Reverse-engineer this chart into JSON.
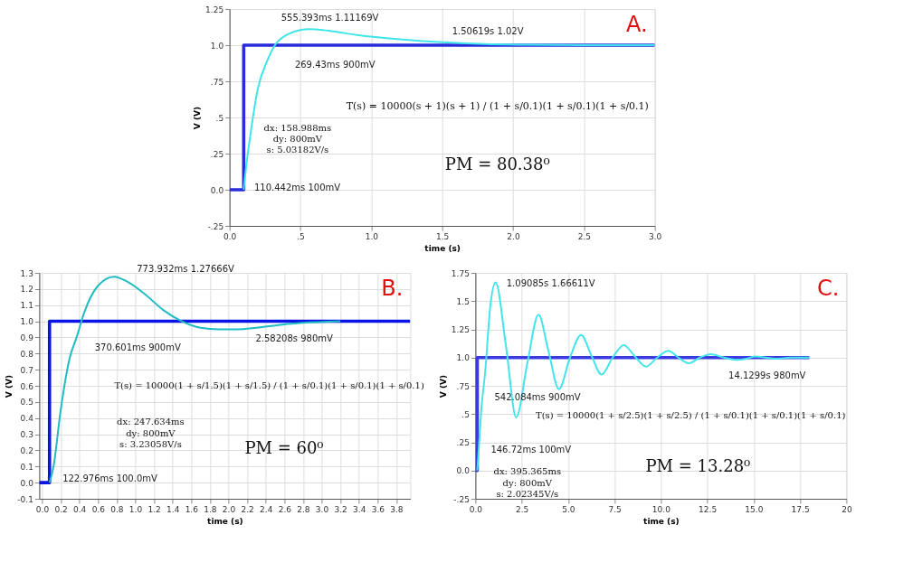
{
  "chart_data": [
    {
      "type": "line",
      "title": "A.",
      "xlabel": "time (s)",
      "ylabel": "V (V)",
      "xlim": [
        0,
        3.0
      ],
      "ylim": [
        -0.25,
        1.25
      ],
      "xticks": [
        {
          "value": 0,
          "label": "0.0"
        },
        {
          "value": 0.5,
          "label": ".5"
        },
        {
          "value": 1.0,
          "label": "1.0"
        },
        {
          "value": 1.5,
          "label": "1.5"
        },
        {
          "value": 2.0,
          "label": "2.0"
        },
        {
          "value": 2.5,
          "label": "2.5"
        },
        {
          "value": 3.0,
          "label": "3.0"
        }
      ],
      "yticks": [
        {
          "value": -0.25,
          "label": "-.25"
        },
        {
          "value": 0,
          "label": "0.0"
        },
        {
          "value": 0.25,
          "label": ".25"
        },
        {
          "value": 0.5,
          "label": ".5"
        },
        {
          "value": 0.75,
          "label": ".75"
        },
        {
          "value": 1.0,
          "label": "1.0"
        },
        {
          "value": 1.25,
          "label": "1.25"
        }
      ],
      "grid": true,
      "legend": false,
      "marker": "none",
      "line_style": "solid",
      "series": [
        {
          "color": "#2b2bdc",
          "x": [
            0,
            0.1,
            0.1,
            3.0
          ],
          "values": [
            0,
            0,
            1,
            1
          ]
        },
        {
          "color": "#3ee6ea",
          "x": [
            0.1,
            0.110442,
            0.15,
            0.2,
            0.26943,
            0.32,
            0.4,
            0.555393,
            0.7,
            0.9,
            1.2,
            1.50619,
            1.8,
            2.1,
            2.5,
            3.0
          ],
          "values": [
            0,
            0.1,
            0.4,
            0.7,
            0.9,
            1.0,
            1.07,
            1.11169,
            1.1,
            1.07,
            1.04,
            1.02,
            1.008,
            1.003,
            1.0,
            1.0
          ]
        }
      ],
      "annotations": [
        {
          "text": "555.393ms 1.11169V",
          "x": 0.555393,
          "y": 1.11169
        },
        {
          "text": "1.50619s 1.02V",
          "x": 1.50619,
          "y": 1.02
        },
        {
          "text": "269.43ms 900mV",
          "x": 0.26943,
          "y": 0.9
        },
        {
          "text": "110.442ms 100mV",
          "x": 0.110442,
          "y": 0.1
        },
        "dx: 158.988ms",
        "dy: 800mV",
        "s: 5.03182V/s",
        "T(s) = 10000(s + 1)(s + 1) / (1 + s/0.1)(1 + s/0.1)(1 + s/0.1)",
        "PM = 80.38⁰"
      ]
    },
    {
      "type": "line",
      "title": "B.",
      "xlabel": "time (s)",
      "ylabel": "V (V)",
      "xlim": [
        -0.03,
        3.95
      ],
      "ylim": [
        -0.1,
        1.3
      ],
      "xticks": [
        {
          "value": 0,
          "label": "0.0"
        },
        0.2,
        0.4,
        0.6,
        0.8,
        {
          "value": 1.0,
          "label": "1.0"
        },
        1.2,
        1.4,
        1.6,
        1.8,
        {
          "value": 2.0,
          "label": "2.0"
        },
        2.2,
        2.4,
        2.6,
        2.8,
        {
          "value": 3.0,
          "label": "3.0"
        },
        3.2,
        3.4,
        3.6,
        3.8
      ],
      "yticks": [
        -0.1,
        {
          "value": 0,
          "label": "0.0"
        },
        0.1,
        0.2,
        0.3,
        0.4,
        0.5,
        0.6,
        0.7,
        0.8,
        0.9,
        {
          "value": 1.0,
          "label": "1.0"
        },
        1.1,
        1.2,
        1.3
      ],
      "grid": true,
      "legend": false,
      "marker": "none",
      "line_style": "solid",
      "series": [
        {
          "color": "#0a14e6",
          "x": [
            -0.03,
            0.08,
            0.08,
            3.95
          ],
          "values": [
            0,
            0,
            1,
            1
          ]
        },
        {
          "color": "#1fbcc4",
          "x": [
            0.08,
            0.122976,
            0.2,
            0.3,
            0.370601,
            0.45,
            0.6,
            0.773932,
            0.9,
            1.1,
            1.3,
            1.5,
            1.7,
            1.9,
            2.1,
            2.3,
            2.58208,
            2.8,
            3.2
          ],
          "values": [
            0,
            0.1,
            0.45,
            0.78,
            0.9,
            1.05,
            1.22,
            1.27666,
            1.25,
            1.17,
            1.07,
            1.0,
            0.96,
            0.95,
            0.95,
            0.96,
            0.98,
            0.99,
            1.0
          ]
        }
      ],
      "annotations": [
        {
          "text": "773.932ms 1.27666V",
          "x": 0.773932,
          "y": 1.27666
        },
        {
          "text": "370.601ms 900mV",
          "x": 0.370601,
          "y": 0.9
        },
        {
          "text": "2.58208s 980mV",
          "x": 2.58208,
          "y": 0.98
        },
        {
          "text": "122.976ms 100.0mV",
          "x": 0.122976,
          "y": 0.1
        },
        "dx: 247.634ms",
        "dy: 800mV",
        "s: 3.23058V/s",
        "T(s) = 10000(1 + s/1.5)(1 + s/1.5) / (1 + s/0.1)(1 + s/0.1)(1 + s/0.1)",
        "PM = 60⁰"
      ]
    },
    {
      "type": "line",
      "title": "C.",
      "xlabel": "time (s)",
      "ylabel": "V (V)",
      "xlim": [
        0,
        20
      ],
      "ylim": [
        -0.25,
        1.75
      ],
      "xticks": [
        {
          "value": 0,
          "label": "0.0"
        },
        2.5,
        {
          "value": 5,
          "label": "5.0"
        },
        7.5,
        {
          "value": 10,
          "label": "10.0"
        },
        12.5,
        {
          "value": 15,
          "label": "15.0"
        },
        17.5,
        20
      ],
      "yticks": [
        {
          "value": -0.25,
          "label": "-.25"
        },
        {
          "value": 0,
          "label": "0.0"
        },
        {
          "value": 0.25,
          "label": ".25"
        },
        {
          "value": 0.5,
          "label": ".5"
        },
        {
          "value": 0.75,
          "label": ".75"
        },
        {
          "value": 1.0,
          "label": "1.0"
        },
        1.25,
        1.5,
        1.75
      ],
      "grid": true,
      "legend": false,
      "marker": "none",
      "line_style": "solid",
      "series": [
        {
          "color": "#3a3ae0",
          "x": [
            0,
            0.1,
            0.1,
            18
          ],
          "values": [
            0,
            0,
            1,
            1
          ]
        },
        {
          "color": "#44e4ec",
          "x": [
            0.1,
            0.14672,
            0.3,
            0.542084,
            0.8,
            1.09085,
            1.65,
            2.2,
            2.8,
            3.4,
            3.95,
            4.5,
            5.1,
            5.7,
            6.25,
            6.8,
            7.4,
            8.0,
            8.6,
            9.2,
            9.8,
            10.4,
            10.95,
            11.5,
            12.1,
            12.7,
            13.4,
            14.1299,
            14.6,
            15.1,
            15.65,
            16.2,
            17.0,
            18.0
          ],
          "values": [
            0,
            0.1,
            0.5,
            0.9,
            1.45,
            1.66611,
            1.1,
            0.47,
            0.95,
            1.38,
            1.05,
            0.72,
            1.0,
            1.2,
            1.02,
            0.85,
            1.0,
            1.11,
            1.01,
            0.92,
            1.0,
            1.06,
            1.0,
            0.95,
            1.0,
            1.03,
            1.0,
            0.98,
            0.99,
            1.01,
            1.0,
            0.99,
            1.0,
            1.0
          ]
        }
      ],
      "annotations": [
        {
          "text": "1.09085s 1.66611V",
          "x": 1.09085,
          "y": 1.66611
        },
        {
          "text": "542.084ms 900mV",
          "x": 0.542084,
          "y": 0.9
        },
        {
          "text": "14.1299s 980mV",
          "x": 14.1299,
          "y": 0.98
        },
        {
          "text": "146.72ms 100mV",
          "x": 0.14672,
          "y": 0.1
        },
        "dx: 395.365ms",
        "dy: 800mV",
        "s: 2.02345V/s",
        "T(s) = 10000(1 + s/2.5)(1 + s/2.5) / (1 + s/0.1)(1 + s/0.1)(1 + s/0.1)",
        "PM = 13.28⁰"
      ]
    }
  ]
}
